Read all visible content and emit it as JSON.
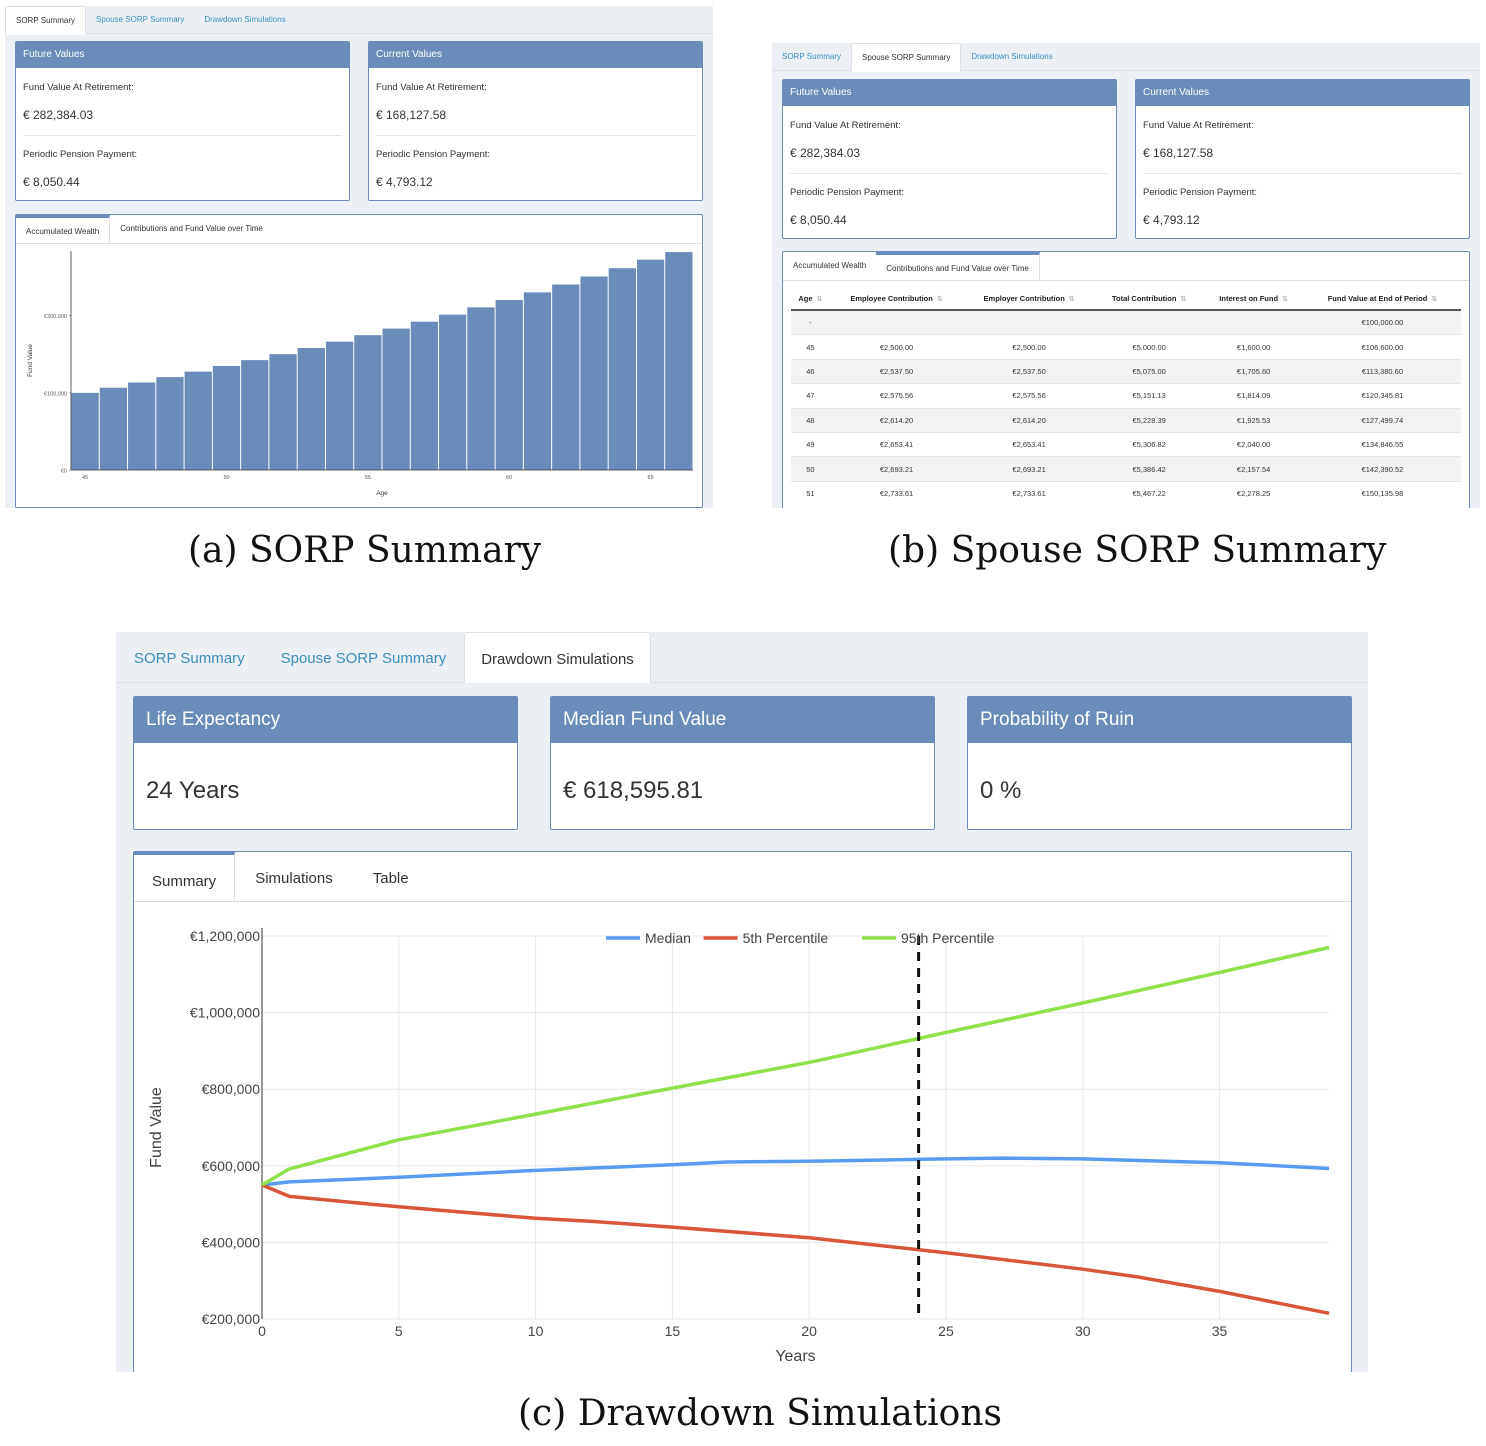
{
  "panel_a": {
    "tabs": [
      "SORP Summary",
      "Spouse SORP Summary",
      "Drawdown Simulations"
    ],
    "future": {
      "title": "Future Values",
      "fund_label": "Fund Value At Retirement:",
      "fund_value": "€ 282,384.03",
      "pension_label": "Periodic Pension Payment:",
      "pension_value": "€ 8,050.44"
    },
    "current": {
      "title": "Current Values",
      "fund_label": "Fund Value At Retirement:",
      "fund_value": "€ 168,127.58",
      "pension_label": "Periodic Pension Payment:",
      "pension_value": "€ 4,793.12"
    },
    "inner_tabs": [
      "Accumulated Wealth",
      "Contributions and Fund Value over Time"
    ]
  },
  "panel_b": {
    "tabs": [
      "SORP Summary",
      "Spouse SORP Summary",
      "Drawdown Simulations"
    ],
    "future": {
      "title": "Future Values",
      "fund_label": "Fund Value At Retirement:",
      "fund_value": "€ 282,384.03",
      "pension_label": "Periodic Pension Payment:",
      "pension_value": "€ 8,050.44"
    },
    "current": {
      "title": "Current Values",
      "fund_label": "Fund Value At Retirement:",
      "fund_value": "€ 168,127.58",
      "pension_label": "Periodic Pension Payment:",
      "pension_value": "€ 4,793.12"
    },
    "inner_tabs": [
      "Accumulated Wealth",
      "Contributions and Fund Value over Time"
    ],
    "table": {
      "columns": [
        "Age",
        "Employee Contribution",
        "Employer Contribution",
        "Total Contribution",
        "Interest on Fund",
        "Fund Value at End of Period"
      ],
      "rows": [
        [
          "-",
          "",
          "",
          "",
          "",
          "€100,000.00"
        ],
        [
          "45",
          "€2,500.00",
          "€2,500.00",
          "€5,000.00",
          "€1,600.00",
          "€106,600.00"
        ],
        [
          "46",
          "€2,537.50",
          "€2,537.50",
          "€5,075.00",
          "€1,705.60",
          "€113,380.60"
        ],
        [
          "47",
          "€2,575.56",
          "€2,575.56",
          "€5,151.13",
          "€1,814.09",
          "€120,345.81"
        ],
        [
          "48",
          "€2,614.20",
          "€2,614.20",
          "€5,228.39",
          "€1,925.53",
          "€127,499.74"
        ],
        [
          "49",
          "€2,653.41",
          "€2,653.41",
          "€5,306.82",
          "€2,040.00",
          "€134,846.55"
        ],
        [
          "50",
          "€2,693.21",
          "€2,693.21",
          "€5,386.42",
          "€2,157.54",
          "€142,390.52"
        ],
        [
          "51",
          "€2,733.61",
          "€2,733.61",
          "€5,467.22",
          "€2,278.25",
          "€150,135.98"
        ]
      ]
    }
  },
  "panel_c": {
    "tabs": [
      "SORP Summary",
      "Spouse SORP Summary",
      "Drawdown Simulations"
    ],
    "boxes": [
      {
        "title": "Life Expectancy",
        "value": "24 Years"
      },
      {
        "title": "Median Fund Value",
        "value": "€ 618,595.81"
      },
      {
        "title": "Probability of Ruin",
        "value": "0 %"
      }
    ],
    "inner_tabs": [
      "Summary",
      "Simulations",
      "Table"
    ]
  },
  "captions": [
    "(a) SORP Summary",
    "(b) Spouse SORP Summary",
    "(c) Drawdown Simulations"
  ],
  "colors": {
    "accent": "#6b8cba",
    "link": "#3c8dbc",
    "bar": "#6b8cba",
    "median": "#5b9bef",
    "p5": "#d9553b",
    "p95": "#8fe04a"
  },
  "chart_data": [
    {
      "type": "bar",
      "xlabel": "Age",
      "ylabel": "Fund Value",
      "x": [
        45,
        46,
        47,
        48,
        49,
        50,
        51,
        52,
        53,
        54,
        55,
        56,
        57,
        58,
        59,
        60,
        61,
        62,
        63,
        64,
        65,
        66
      ],
      "values": [
        100000,
        106600,
        113381,
        120346,
        127500,
        134847,
        142391,
        150136,
        158100,
        166300,
        174700,
        183300,
        192200,
        201300,
        210700,
        220300,
        230200,
        240400,
        250800,
        261500,
        272500,
        282384
      ],
      "x_ticks": [
        "45",
        "50",
        "55",
        "60",
        "65"
      ],
      "y_ticks": [
        "€0",
        "€100,000",
        "€200,000"
      ],
      "ylim": [
        0,
        282384
      ]
    },
    {
      "type": "line",
      "xlabel": "Years",
      "ylabel": "Fund Value",
      "x_ticks": [
        "0",
        "5",
        "10",
        "15",
        "20",
        "25",
        "30",
        "35"
      ],
      "y_ticks": [
        "€200,000",
        "€400,000",
        "€600,000",
        "€800,000",
        "€1,000,000",
        "€1,200,000"
      ],
      "xlim": [
        0,
        39
      ],
      "ylim": [
        200000,
        1200000
      ],
      "legend": "top-center",
      "vline_x": 24,
      "series": [
        {
          "name": "Median",
          "x": [
            0,
            1,
            5,
            10,
            15,
            17,
            20,
            25,
            27,
            30,
            35,
            39
          ],
          "values": [
            550000,
            558000,
            570000,
            588000,
            603000,
            610000,
            612000,
            618000,
            620000,
            618000,
            608000,
            593000
          ]
        },
        {
          "name": "5th Percentile",
          "x": [
            0,
            1,
            5,
            10,
            12,
            15,
            20,
            25,
            30,
            32,
            35,
            39
          ],
          "values": [
            550000,
            520000,
            493000,
            463000,
            455000,
            440000,
            412000,
            373000,
            330000,
            310000,
            272000,
            215000
          ]
        },
        {
          "name": "95th Percentile",
          "x": [
            0,
            1,
            5,
            10,
            15,
            20,
            25,
            30,
            35,
            39
          ],
          "values": [
            550000,
            592000,
            668000,
            735000,
            803000,
            870000,
            948000,
            1025000,
            1105000,
            1170000
          ]
        }
      ]
    }
  ]
}
